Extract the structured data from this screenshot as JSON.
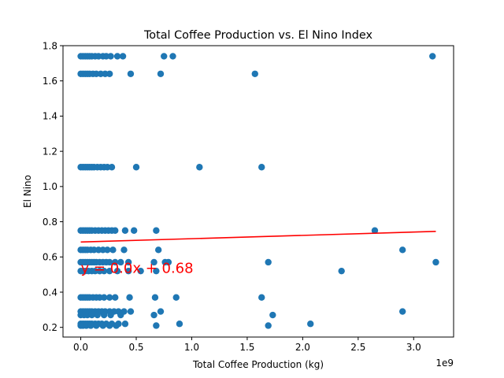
{
  "chart_data": {
    "type": "scatter",
    "title": "Total Coffee Production vs. El Nino Index",
    "xlabel": "Total Coffee Production (kg)",
    "ylabel": "El Nino",
    "x_offset_text": "1e9",
    "xlim": [
      -0.16,
      3.36
    ],
    "ylim": [
      0.145,
      1.8
    ],
    "x_ticks": [
      0.0,
      0.5,
      1.0,
      1.5,
      2.0,
      2.5,
      3.0
    ],
    "x_tick_labels": [
      "0.0",
      "0.5",
      "1.0",
      "1.5",
      "2.0",
      "2.5",
      "3.0"
    ],
    "y_ticks": [
      0.2,
      0.4,
      0.6,
      0.8,
      1.0,
      1.2,
      1.4,
      1.6,
      1.8
    ],
    "y_tick_labels": [
      "0.2",
      "0.4",
      "0.6",
      "0.8",
      "1.0",
      "1.2",
      "1.4",
      "1.6",
      "1.8"
    ],
    "grid": false,
    "colors": {
      "points": "#1f77b4",
      "trendline": "#ff0000",
      "annotation": "#ff0000"
    },
    "trendline": {
      "slope": 0.0,
      "intercept": 0.68,
      "x_range": [
        0.0,
        3.2
      ],
      "y_range": [
        0.685,
        0.745
      ]
    },
    "annotation": {
      "text": "y = 0.0x + 0.68",
      "x": 0.0,
      "y": 0.51
    },
    "points": [
      [
        0.0,
        1.74
      ],
      [
        0.02,
        1.74
      ],
      [
        0.04,
        1.74
      ],
      [
        0.06,
        1.74
      ],
      [
        0.08,
        1.74
      ],
      [
        0.1,
        1.74
      ],
      [
        0.13,
        1.74
      ],
      [
        0.16,
        1.74
      ],
      [
        0.2,
        1.74
      ],
      [
        0.23,
        1.74
      ],
      [
        0.27,
        1.74
      ],
      [
        0.33,
        1.74
      ],
      [
        0.38,
        1.74
      ],
      [
        0.75,
        1.74
      ],
      [
        0.83,
        1.74
      ],
      [
        3.17,
        1.74
      ],
      [
        0.0,
        1.64
      ],
      [
        0.02,
        1.64
      ],
      [
        0.04,
        1.64
      ],
      [
        0.06,
        1.64
      ],
      [
        0.08,
        1.64
      ],
      [
        0.11,
        1.64
      ],
      [
        0.14,
        1.64
      ],
      [
        0.18,
        1.64
      ],
      [
        0.22,
        1.64
      ],
      [
        0.26,
        1.64
      ],
      [
        0.45,
        1.64
      ],
      [
        0.72,
        1.64
      ],
      [
        1.57,
        1.64
      ],
      [
        0.0,
        1.11
      ],
      [
        0.02,
        1.11
      ],
      [
        0.04,
        1.11
      ],
      [
        0.06,
        1.11
      ],
      [
        0.08,
        1.11
      ],
      [
        0.1,
        1.11
      ],
      [
        0.12,
        1.11
      ],
      [
        0.15,
        1.11
      ],
      [
        0.18,
        1.11
      ],
      [
        0.21,
        1.11
      ],
      [
        0.24,
        1.11
      ],
      [
        0.28,
        1.11
      ],
      [
        0.5,
        1.11
      ],
      [
        1.07,
        1.11
      ],
      [
        1.63,
        1.11
      ],
      [
        0.0,
        0.75
      ],
      [
        0.02,
        0.75
      ],
      [
        0.04,
        0.75
      ],
      [
        0.06,
        0.75
      ],
      [
        0.08,
        0.75
      ],
      [
        0.1,
        0.75
      ],
      [
        0.13,
        0.75
      ],
      [
        0.16,
        0.75
      ],
      [
        0.19,
        0.75
      ],
      [
        0.22,
        0.75
      ],
      [
        0.25,
        0.75
      ],
      [
        0.28,
        0.75
      ],
      [
        0.31,
        0.75
      ],
      [
        0.4,
        0.75
      ],
      [
        0.48,
        0.75
      ],
      [
        0.68,
        0.75
      ],
      [
        2.65,
        0.75
      ],
      [
        0.0,
        0.64
      ],
      [
        0.02,
        0.64
      ],
      [
        0.04,
        0.64
      ],
      [
        0.06,
        0.64
      ],
      [
        0.09,
        0.64
      ],
      [
        0.12,
        0.64
      ],
      [
        0.16,
        0.64
      ],
      [
        0.2,
        0.64
      ],
      [
        0.24,
        0.64
      ],
      [
        0.29,
        0.64
      ],
      [
        0.39,
        0.64
      ],
      [
        0.7,
        0.64
      ],
      [
        2.9,
        0.64
      ],
      [
        0.0,
        0.57
      ],
      [
        0.02,
        0.57
      ],
      [
        0.04,
        0.57
      ],
      [
        0.06,
        0.57
      ],
      [
        0.08,
        0.57
      ],
      [
        0.1,
        0.57
      ],
      [
        0.12,
        0.57
      ],
      [
        0.14,
        0.57
      ],
      [
        0.17,
        0.57
      ],
      [
        0.2,
        0.57
      ],
      [
        0.23,
        0.57
      ],
      [
        0.26,
        0.57
      ],
      [
        0.31,
        0.57
      ],
      [
        0.36,
        0.57
      ],
      [
        0.43,
        0.57
      ],
      [
        0.66,
        0.57
      ],
      [
        0.76,
        0.57
      ],
      [
        0.79,
        0.57
      ],
      [
        1.69,
        0.57
      ],
      [
        3.2,
        0.57
      ],
      [
        0.0,
        0.52
      ],
      [
        0.02,
        0.52
      ],
      [
        0.04,
        0.52
      ],
      [
        0.07,
        0.52
      ],
      [
        0.1,
        0.52
      ],
      [
        0.13,
        0.52
      ],
      [
        0.17,
        0.52
      ],
      [
        0.21,
        0.52
      ],
      [
        0.26,
        0.52
      ],
      [
        0.33,
        0.52
      ],
      [
        0.43,
        0.52
      ],
      [
        0.54,
        0.52
      ],
      [
        0.68,
        0.52
      ],
      [
        2.35,
        0.52
      ],
      [
        0.0,
        0.37
      ],
      [
        0.02,
        0.37
      ],
      [
        0.04,
        0.37
      ],
      [
        0.06,
        0.37
      ],
      [
        0.08,
        0.37
      ],
      [
        0.11,
        0.37
      ],
      [
        0.14,
        0.37
      ],
      [
        0.17,
        0.37
      ],
      [
        0.21,
        0.37
      ],
      [
        0.26,
        0.37
      ],
      [
        0.31,
        0.37
      ],
      [
        0.44,
        0.37
      ],
      [
        0.67,
        0.37
      ],
      [
        0.86,
        0.37
      ],
      [
        1.63,
        0.37
      ],
      [
        0.0,
        0.29
      ],
      [
        0.02,
        0.29
      ],
      [
        0.04,
        0.29
      ],
      [
        0.06,
        0.29
      ],
      [
        0.08,
        0.29
      ],
      [
        0.1,
        0.29
      ],
      [
        0.13,
        0.29
      ],
      [
        0.16,
        0.29
      ],
      [
        0.19,
        0.29
      ],
      [
        0.22,
        0.29
      ],
      [
        0.26,
        0.29
      ],
      [
        0.3,
        0.29
      ],
      [
        0.34,
        0.29
      ],
      [
        0.39,
        0.29
      ],
      [
        0.45,
        0.29
      ],
      [
        0.72,
        0.29
      ],
      [
        2.9,
        0.29
      ],
      [
        0.0,
        0.27
      ],
      [
        0.03,
        0.27
      ],
      [
        0.06,
        0.27
      ],
      [
        0.1,
        0.27
      ],
      [
        0.15,
        0.27
      ],
      [
        0.21,
        0.27
      ],
      [
        0.27,
        0.27
      ],
      [
        0.36,
        0.27
      ],
      [
        0.66,
        0.27
      ],
      [
        1.73,
        0.27
      ],
      [
        0.0,
        0.22
      ],
      [
        0.02,
        0.22
      ],
      [
        0.04,
        0.22
      ],
      [
        0.06,
        0.22
      ],
      [
        0.08,
        0.22
      ],
      [
        0.1,
        0.22
      ],
      [
        0.13,
        0.22
      ],
      [
        0.16,
        0.22
      ],
      [
        0.19,
        0.22
      ],
      [
        0.23,
        0.22
      ],
      [
        0.28,
        0.22
      ],
      [
        0.34,
        0.22
      ],
      [
        0.4,
        0.22
      ],
      [
        0.89,
        0.22
      ],
      [
        2.07,
        0.22
      ],
      [
        0.0,
        0.21
      ],
      [
        0.02,
        0.21
      ],
      [
        0.05,
        0.21
      ],
      [
        0.09,
        0.21
      ],
      [
        0.14,
        0.21
      ],
      [
        0.2,
        0.21
      ],
      [
        0.26,
        0.21
      ],
      [
        0.32,
        0.21
      ],
      [
        0.68,
        0.21
      ],
      [
        1.69,
        0.21
      ]
    ]
  }
}
